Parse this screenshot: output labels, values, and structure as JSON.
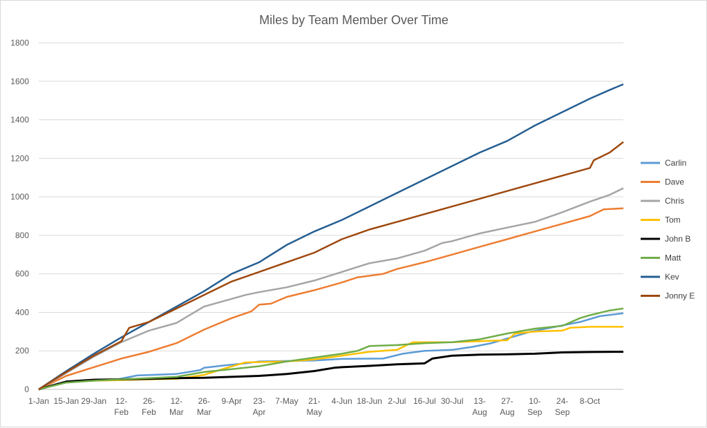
{
  "chart_data": {
    "type": "line",
    "title": "Miles by Team Member Over Time",
    "xlabel": "",
    "ylabel": "",
    "ylim": [
      0,
      1800
    ],
    "y_ticks": [
      "0",
      "200",
      "400",
      "600",
      "800",
      "1000",
      "1200",
      "1400",
      "1600",
      "1800"
    ],
    "x_tick_labels": [
      [
        "1-Jan"
      ],
      [
        "15-Jan"
      ],
      [
        "29-Jan"
      ],
      [
        "12-",
        "Feb"
      ],
      [
        "26-",
        "Feb"
      ],
      [
        "12-",
        "Mar"
      ],
      [
        "26-",
        "Mar"
      ],
      [
        "9-Apr"
      ],
      [
        "23-",
        "Apr"
      ],
      [
        "7-May"
      ],
      [
        "21-",
        "May"
      ],
      [
        "4-Jun"
      ],
      [
        "18-Jun"
      ],
      [
        "2-Jul"
      ],
      [
        "16-Jul"
      ],
      [
        "30-Jul"
      ],
      [
        "13-",
        "Aug"
      ],
      [
        "27-",
        "Aug"
      ],
      [
        "10-",
        "Sep"
      ],
      [
        "24-",
        "Sep"
      ],
      [
        "8-Oct"
      ]
    ],
    "x_tick_days": [
      0,
      14,
      28,
      42,
      56,
      70,
      84,
      98,
      112,
      126,
      140,
      154,
      168,
      182,
      196,
      210,
      224,
      238,
      252,
      266,
      280
    ],
    "x_range_days": [
      0,
      297
    ],
    "legend_position": "right",
    "grid": "horizontal",
    "series": [
      {
        "name": "Carlin",
        "color": "#5b9bd5",
        "points": [
          [
            0,
            0
          ],
          [
            10,
            30
          ],
          [
            20,
            45
          ],
          [
            40,
            52
          ],
          [
            50,
            72
          ],
          [
            70,
            80
          ],
          [
            82,
            100
          ],
          [
            84,
            112
          ],
          [
            95,
            125
          ],
          [
            105,
            135
          ],
          [
            112,
            145
          ],
          [
            140,
            150
          ],
          [
            154,
            158
          ],
          [
            175,
            160
          ],
          [
            185,
            185
          ],
          [
            196,
            200
          ],
          [
            210,
            205
          ],
          [
            220,
            220
          ],
          [
            230,
            240
          ],
          [
            240,
            270
          ],
          [
            250,
            300
          ],
          [
            260,
            320
          ],
          [
            275,
            350
          ],
          [
            285,
            380
          ],
          [
            297,
            395
          ]
        ]
      },
      {
        "name": "Dave",
        "color": "#ed7d31",
        "points": [
          [
            0,
            0
          ],
          [
            14,
            70
          ],
          [
            28,
            115
          ],
          [
            42,
            160
          ],
          [
            56,
            195
          ],
          [
            70,
            240
          ],
          [
            84,
            310
          ],
          [
            98,
            370
          ],
          [
            108,
            405
          ],
          [
            112,
            440
          ],
          [
            118,
            445
          ],
          [
            126,
            480
          ],
          [
            140,
            515
          ],
          [
            154,
            555
          ],
          [
            162,
            582
          ],
          [
            175,
            600
          ],
          [
            182,
            625
          ],
          [
            196,
            660
          ],
          [
            210,
            700
          ],
          [
            224,
            740
          ],
          [
            238,
            780
          ],
          [
            252,
            820
          ],
          [
            266,
            860
          ],
          [
            280,
            900
          ],
          [
            287,
            935
          ],
          [
            297,
            940
          ]
        ]
      },
      {
        "name": "Chris",
        "color": "#a5a5a5",
        "points": [
          [
            0,
            0
          ],
          [
            14,
            85
          ],
          [
            28,
            170
          ],
          [
            42,
            245
          ],
          [
            56,
            305
          ],
          [
            70,
            345
          ],
          [
            84,
            430
          ],
          [
            98,
            470
          ],
          [
            105,
            490
          ],
          [
            112,
            505
          ],
          [
            126,
            530
          ],
          [
            140,
            565
          ],
          [
            154,
            610
          ],
          [
            168,
            655
          ],
          [
            182,
            680
          ],
          [
            196,
            720
          ],
          [
            205,
            760
          ],
          [
            210,
            770
          ],
          [
            224,
            810
          ],
          [
            238,
            840
          ],
          [
            252,
            870
          ],
          [
            266,
            920
          ],
          [
            280,
            975
          ],
          [
            290,
            1010
          ],
          [
            297,
            1045
          ]
        ]
      },
      {
        "name": "Tom",
        "color": "#ffc000",
        "points": [
          [
            0,
            0
          ],
          [
            14,
            40
          ],
          [
            28,
            45
          ],
          [
            42,
            48
          ],
          [
            56,
            52
          ],
          [
            70,
            55
          ],
          [
            84,
            75
          ],
          [
            95,
            110
          ],
          [
            105,
            140
          ],
          [
            126,
            145
          ],
          [
            140,
            155
          ],
          [
            154,
            175
          ],
          [
            168,
            195
          ],
          [
            182,
            205
          ],
          [
            190,
            245
          ],
          [
            210,
            245
          ],
          [
            224,
            250
          ],
          [
            238,
            255
          ],
          [
            242,
            290
          ],
          [
            252,
            300
          ],
          [
            266,
            305
          ],
          [
            270,
            320
          ],
          [
            280,
            325
          ],
          [
            297,
            325
          ]
        ]
      },
      {
        "name": "John B",
        "color": "#000000",
        "points": [
          [
            0,
            0
          ],
          [
            14,
            40
          ],
          [
            28,
            50
          ],
          [
            42,
            52
          ],
          [
            56,
            55
          ],
          [
            70,
            58
          ],
          [
            84,
            60
          ],
          [
            98,
            65
          ],
          [
            112,
            70
          ],
          [
            126,
            80
          ],
          [
            140,
            95
          ],
          [
            150,
            112
          ],
          [
            154,
            115
          ],
          [
            168,
            122
          ],
          [
            182,
            130
          ],
          [
            196,
            135
          ],
          [
            200,
            160
          ],
          [
            210,
            175
          ],
          [
            224,
            180
          ],
          [
            238,
            182
          ],
          [
            252,
            185
          ],
          [
            266,
            192
          ],
          [
            280,
            194
          ],
          [
            297,
            195
          ]
        ]
      },
      {
        "name": "Matt",
        "color": "#70ad47",
        "points": [
          [
            0,
            0
          ],
          [
            14,
            35
          ],
          [
            28,
            45
          ],
          [
            42,
            52
          ],
          [
            56,
            58
          ],
          [
            70,
            65
          ],
          [
            84,
            90
          ],
          [
            98,
            105
          ],
          [
            112,
            120
          ],
          [
            126,
            145
          ],
          [
            140,
            165
          ],
          [
            154,
            185
          ],
          [
            162,
            200
          ],
          [
            168,
            225
          ],
          [
            182,
            230
          ],
          [
            196,
            240
          ],
          [
            210,
            245
          ],
          [
            224,
            260
          ],
          [
            238,
            290
          ],
          [
            252,
            315
          ],
          [
            266,
            330
          ],
          [
            275,
            370
          ],
          [
            280,
            385
          ],
          [
            290,
            410
          ],
          [
            297,
            420
          ]
        ]
      },
      {
        "name": "Kev",
        "color": "#255e91",
        "points": [
          [
            0,
            0
          ],
          [
            14,
            95
          ],
          [
            28,
            185
          ],
          [
            42,
            270
          ],
          [
            56,
            350
          ],
          [
            70,
            430
          ],
          [
            84,
            510
          ],
          [
            98,
            600
          ],
          [
            112,
            660
          ],
          [
            126,
            750
          ],
          [
            140,
            820
          ],
          [
            154,
            880
          ],
          [
            168,
            950
          ],
          [
            182,
            1020
          ],
          [
            196,
            1090
          ],
          [
            210,
            1160
          ],
          [
            224,
            1230
          ],
          [
            238,
            1290
          ],
          [
            252,
            1370
          ],
          [
            266,
            1440
          ],
          [
            280,
            1510
          ],
          [
            290,
            1555
          ],
          [
            297,
            1585
          ]
        ]
      },
      {
        "name": "Jonny E",
        "color": "#9e480e",
        "points": [
          [
            0,
            0
          ],
          [
            14,
            90
          ],
          [
            28,
            175
          ],
          [
            42,
            250
          ],
          [
            46,
            320
          ],
          [
            56,
            350
          ],
          [
            70,
            420
          ],
          [
            84,
            490
          ],
          [
            98,
            560
          ],
          [
            112,
            610
          ],
          [
            126,
            660
          ],
          [
            140,
            710
          ],
          [
            154,
            780
          ],
          [
            168,
            830
          ],
          [
            182,
            870
          ],
          [
            196,
            910
          ],
          [
            210,
            950
          ],
          [
            224,
            990
          ],
          [
            238,
            1030
          ],
          [
            252,
            1070
          ],
          [
            266,
            1110
          ],
          [
            280,
            1150
          ],
          [
            282,
            1190
          ],
          [
            290,
            1230
          ],
          [
            297,
            1285
          ]
        ]
      }
    ]
  }
}
